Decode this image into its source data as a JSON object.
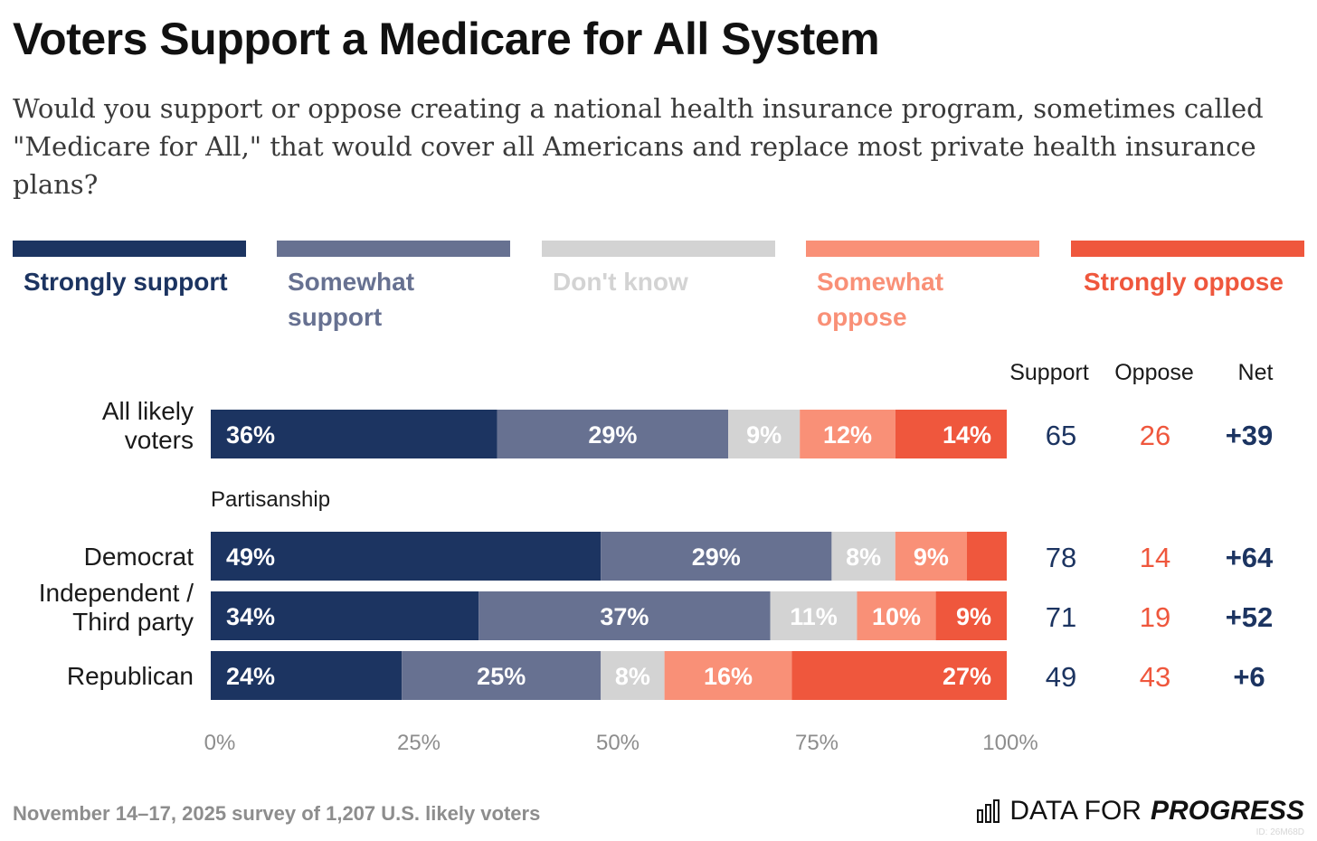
{
  "title": "Voters Support a Medicare for All System",
  "subtitle": "Would you support or oppose creating a national health insurance program, sometimes called \"Medicare for All,\" that would cover all Americans and replace most private health insurance plans?",
  "colors": {
    "strongly_support": "#1c3461",
    "somewhat_support": "#677191",
    "dont_know": "#d3d3d3",
    "somewhat_oppose": "#f99077",
    "strongly_oppose": "#ef573d",
    "support_text": "#1c3461",
    "oppose_text": "#ef573d"
  },
  "legend": [
    {
      "label": "Strongly support",
      "color": "#1c3461"
    },
    {
      "label": "Somewhat support",
      "color": "#677191"
    },
    {
      "label": "Don't know",
      "color": "#d3d3d3"
    },
    {
      "label": "Somewhat oppose",
      "color": "#f99077"
    },
    {
      "label": "Strongly oppose",
      "color": "#ef573d"
    }
  ],
  "columns": {
    "support": "Support",
    "oppose": "Oppose",
    "net": "Net"
  },
  "axis_ticks": [
    "0%",
    "25%",
    "50%",
    "75%",
    "100%"
  ],
  "footer": "November 14–17, 2025 survey of 1,207 U.S. likely voters",
  "brand": {
    "prefix": "DATA FOR",
    "emphasis": "PROGRESS"
  },
  "chart_id": "ID: 26M68D",
  "chart_data": {
    "type": "bar",
    "orientation": "horizontal-stacked-100",
    "title": "Voters Support a Medicare for All System",
    "series_names": [
      "Strongly support",
      "Somewhat support",
      "Don't know",
      "Somewhat oppose",
      "Strongly oppose"
    ],
    "xlim": [
      0,
      100
    ],
    "group_label": "Partisanship",
    "rows": [
      {
        "label": [
          "All likely",
          "voters"
        ],
        "values": [
          36,
          29,
          9,
          12,
          14
        ],
        "labels": [
          "36%",
          "29%",
          "9%",
          "12%",
          "14%"
        ],
        "support": "65",
        "oppose": "26",
        "net": "+39"
      },
      {
        "label": [
          "Democrat"
        ],
        "values": [
          49,
          29,
          8,
          9,
          5
        ],
        "labels": [
          "49%",
          "29%",
          "8%",
          "9%",
          ""
        ],
        "support": "78",
        "oppose": "14",
        "net": "+64"
      },
      {
        "label": [
          "Independent /",
          "Third party"
        ],
        "values": [
          34,
          37,
          11,
          10,
          9
        ],
        "labels": [
          "34%",
          "37%",
          "11%",
          "10%",
          "9%"
        ],
        "support": "71",
        "oppose": "19",
        "net": "+52"
      },
      {
        "label": [
          "Republican"
        ],
        "values": [
          24,
          25,
          8,
          16,
          27
        ],
        "labels": [
          "24%",
          "25%",
          "8%",
          "16%",
          "27%"
        ],
        "support": "49",
        "oppose": "43",
        "net": "+6"
      }
    ]
  }
}
